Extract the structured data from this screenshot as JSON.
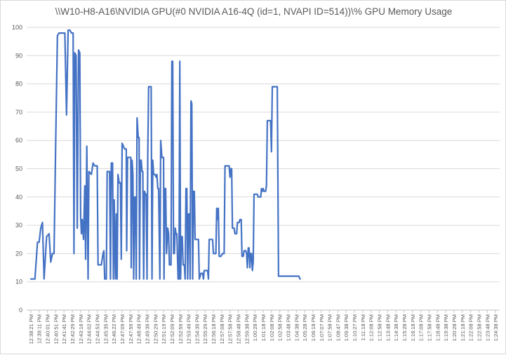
{
  "chart_data": {
    "type": "line",
    "title": "\\\\W10-H8-A16\\NVIDIA GPU(#0 NVIDIA A16-4Q (id=1, NVAPI ID=514))\\% GPU Memory Usage",
    "xlabel": "",
    "ylabel": "",
    "ylim": [
      0,
      100
    ],
    "yticks": [
      0,
      10,
      20,
      30,
      40,
      50,
      60,
      70,
      80,
      90,
      100
    ],
    "grid": true,
    "legend": "none",
    "line_color": "#4472c4",
    "x_tick_labels": [
      "12:38:21 PM",
      "12:39:11 PM",
      "12:40:01 PM",
      "12:40:51 PM",
      "12:41:41 PM",
      "12:42:29 PM",
      "12:43:16 PM",
      "12:44:02 PM",
      "12:44:53 PM",
      "12:45:35 PM",
      "12:46:22 PM",
      "12:47:09 PM",
      "12:47:59 PM",
      "12:48:49 PM",
      "12:49:39 PM",
      "12:50:29 PM",
      "12:51:19 PM",
      "12:52:09 PM",
      "12:52:59 PM",
      "12:53:49 PM",
      "12:54:39 PM",
      "12:55:29 PM",
      "12:56:18 PM",
      "12:57:08 PM",
      "12:57:58 PM",
      "12:58:48 PM",
      "12:59:38 PM",
      "1:00:28 PM",
      "1:01:18 PM",
      "1:02:08 PM",
      "1:02:58 PM",
      "1:03:48 PM",
      "1:04:38 PM",
      "1:05:28 PM",
      "1:06:18 PM",
      "1:07:07 PM",
      "1:07:58 PM",
      "1:08:47 PM",
      "1:09:38 PM",
      "1:10:27 PM",
      "1:11:18 PM",
      "1:12:08 PM",
      "1:12:58 PM",
      "1:13:48 PM",
      "1:14:38 PM",
      "1:15:28 PM",
      "1:16:18 PM",
      "1:17:08 PM",
      "1:17:58 PM",
      "1:18:48 PM",
      "1:19:38 PM",
      "1:20:28 PM",
      "1:21:18 PM",
      "1:22:08 PM",
      "1:22:58 PM",
      "1:23:48 PM",
      "1:24:38 PM"
    ],
    "series": [
      {
        "values": [
          [
            0,
            11
          ],
          [
            0.5,
            11
          ],
          [
            0.8,
            24
          ],
          [
            1.0,
            24
          ],
          [
            1.2,
            29
          ],
          [
            1.4,
            31
          ],
          [
            1.6,
            11
          ],
          [
            1.9,
            26
          ],
          [
            2.2,
            27
          ],
          [
            2.4,
            17
          ],
          [
            2.6,
            20
          ],
          [
            2.8,
            20
          ],
          [
            3.0,
            60
          ],
          [
            3.2,
            97
          ],
          [
            3.4,
            98
          ],
          [
            3.9,
            98
          ],
          [
            4.1,
            98
          ],
          [
            4.3,
            69
          ],
          [
            4.5,
            99
          ],
          [
            4.7,
            99
          ],
          [
            4.9,
            98
          ],
          [
            5.1,
            98
          ],
          [
            5.2,
            20
          ],
          [
            5.3,
            91
          ],
          [
            5.45,
            90
          ],
          [
            5.6,
            29
          ],
          [
            5.75,
            92
          ],
          [
            5.9,
            91
          ],
          [
            6.0,
            33
          ],
          [
            6.1,
            27
          ],
          [
            6.2,
            32
          ],
          [
            6.35,
            25
          ],
          [
            6.5,
            44
          ],
          [
            6.6,
            18
          ],
          [
            6.75,
            58
          ],
          [
            6.9,
            11
          ],
          [
            7.0,
            49
          ],
          [
            7.3,
            48
          ],
          [
            7.5,
            52
          ],
          [
            7.7,
            51
          ],
          [
            8.0,
            51
          ],
          [
            8.1,
            16
          ],
          [
            8.5,
            16
          ],
          [
            8.7,
            20
          ],
          [
            8.8,
            21
          ],
          [
            8.9,
            11
          ],
          [
            9.1,
            11
          ],
          [
            9.2,
            49
          ],
          [
            9.5,
            49
          ],
          [
            9.6,
            11
          ],
          [
            9.7,
            52
          ],
          [
            9.85,
            52
          ],
          [
            9.95,
            11
          ],
          [
            10.05,
            39
          ],
          [
            10.2,
            11
          ],
          [
            10.3,
            34
          ],
          [
            10.4,
            11
          ],
          [
            10.5,
            48
          ],
          [
            10.65,
            45
          ],
          [
            10.8,
            45
          ],
          [
            10.9,
            18
          ],
          [
            11.0,
            59
          ],
          [
            11.3,
            57
          ],
          [
            11.5,
            57
          ],
          [
            11.55,
            21
          ],
          [
            11.65,
            54
          ],
          [
            11.9,
            54
          ],
          [
            12.05,
            54
          ],
          [
            12.1,
            15
          ],
          [
            12.2,
            53
          ],
          [
            12.3,
            48
          ],
          [
            12.4,
            11
          ],
          [
            12.5,
            40
          ],
          [
            12.6,
            40
          ],
          [
            12.7,
            11
          ],
          [
            12.8,
            68
          ],
          [
            12.95,
            61
          ],
          [
            13.05,
            61
          ],
          [
            13.1,
            11
          ],
          [
            13.2,
            53
          ],
          [
            13.3,
            53
          ],
          [
            13.4,
            49
          ],
          [
            13.5,
            49
          ],
          [
            13.6,
            11
          ],
          [
            13.7,
            42
          ],
          [
            13.8,
            41
          ],
          [
            13.9,
            41
          ],
          [
            14.0,
            11
          ],
          [
            14.1,
            56
          ],
          [
            14.2,
            79
          ],
          [
            14.5,
            79
          ],
          [
            14.6,
            11
          ],
          [
            14.7,
            53
          ],
          [
            14.8,
            48
          ],
          [
            14.95,
            48
          ],
          [
            15.1,
            47
          ],
          [
            15.2,
            48
          ],
          [
            15.3,
            43
          ],
          [
            15.4,
            43
          ],
          [
            15.55,
            11
          ],
          [
            15.65,
            60
          ],
          [
            15.8,
            54
          ],
          [
            16.0,
            54
          ],
          [
            16.05,
            11
          ],
          [
            16.15,
            43
          ],
          [
            16.25,
            43
          ],
          [
            16.35,
            20
          ],
          [
            16.5,
            29
          ],
          [
            16.6,
            27
          ],
          [
            16.7,
            16
          ],
          [
            16.9,
            16
          ],
          [
            17.0,
            88
          ],
          [
            17.1,
            88
          ],
          [
            17.2,
            20
          ],
          [
            17.3,
            20
          ],
          [
            17.4,
            29
          ],
          [
            17.5,
            27
          ],
          [
            17.6,
            27
          ],
          [
            17.75,
            11
          ],
          [
            17.85,
            11
          ],
          [
            17.95,
            88
          ],
          [
            18.05,
            11
          ],
          [
            18.15,
            26
          ],
          [
            18.25,
            26
          ],
          [
            18.35,
            16
          ],
          [
            18.5,
            16
          ],
          [
            18.6,
            11
          ],
          [
            18.7,
            43
          ],
          [
            18.8,
            43
          ],
          [
            18.9,
            11
          ],
          [
            19.0,
            34
          ],
          [
            19.1,
            34
          ],
          [
            19.2,
            11
          ],
          [
            19.3,
            74
          ],
          [
            19.4,
            73
          ],
          [
            19.5,
            11
          ],
          [
            19.6,
            42
          ],
          [
            19.7,
            42
          ],
          [
            19.8,
            25
          ],
          [
            20.0,
            25
          ],
          [
            20.2,
            25
          ],
          [
            20.3,
            11
          ],
          [
            20.5,
            13
          ],
          [
            20.7,
            13
          ],
          [
            20.8,
            11
          ],
          [
            20.9,
            14
          ],
          [
            21.3,
            14
          ],
          [
            21.4,
            11
          ],
          [
            21.5,
            25
          ],
          [
            21.9,
            25
          ],
          [
            22.0,
            20
          ],
          [
            22.3,
            20
          ],
          [
            22.4,
            36
          ],
          [
            22.5,
            32
          ],
          [
            22.6,
            36
          ],
          [
            22.7,
            19
          ],
          [
            22.9,
            19
          ],
          [
            23.1,
            20
          ],
          [
            23.3,
            20
          ],
          [
            23.4,
            51
          ],
          [
            23.7,
            51
          ],
          [
            23.9,
            51
          ],
          [
            24.0,
            47
          ],
          [
            24.1,
            50
          ],
          [
            24.2,
            50
          ],
          [
            24.3,
            29
          ],
          [
            24.5,
            29
          ],
          [
            24.6,
            27
          ],
          [
            24.8,
            27
          ],
          [
            24.9,
            31
          ],
          [
            25.1,
            31
          ],
          [
            25.2,
            32
          ],
          [
            25.35,
            32
          ],
          [
            25.45,
            19
          ],
          [
            25.6,
            19
          ],
          [
            25.7,
            21
          ],
          [
            25.9,
            21
          ],
          [
            26.0,
            20
          ],
          [
            26.1,
            15
          ],
          [
            26.2,
            22
          ],
          [
            26.3,
            22
          ],
          [
            26.4,
            15
          ],
          [
            26.5,
            20
          ],
          [
            26.6,
            20
          ],
          [
            26.7,
            14
          ],
          [
            26.8,
            17
          ],
          [
            26.9,
            41
          ],
          [
            27.3,
            41
          ],
          [
            27.4,
            40
          ],
          [
            27.7,
            40
          ],
          [
            27.8,
            43
          ],
          [
            27.9,
            42
          ],
          [
            28.0,
            43
          ],
          [
            28.1,
            42
          ],
          [
            28.3,
            42
          ],
          [
            28.4,
            44
          ],
          [
            28.5,
            67
          ],
          [
            28.9,
            67
          ],
          [
            29.0,
            56
          ],
          [
            29.1,
            79
          ],
          [
            29.4,
            79
          ],
          [
            29.7,
            79
          ],
          [
            29.85,
            12
          ],
          [
            30.5,
            12
          ],
          [
            31.5,
            12
          ],
          [
            32.0,
            12
          ],
          [
            32.3,
            12
          ],
          [
            32.45,
            11
          ]
        ]
      }
    ]
  }
}
